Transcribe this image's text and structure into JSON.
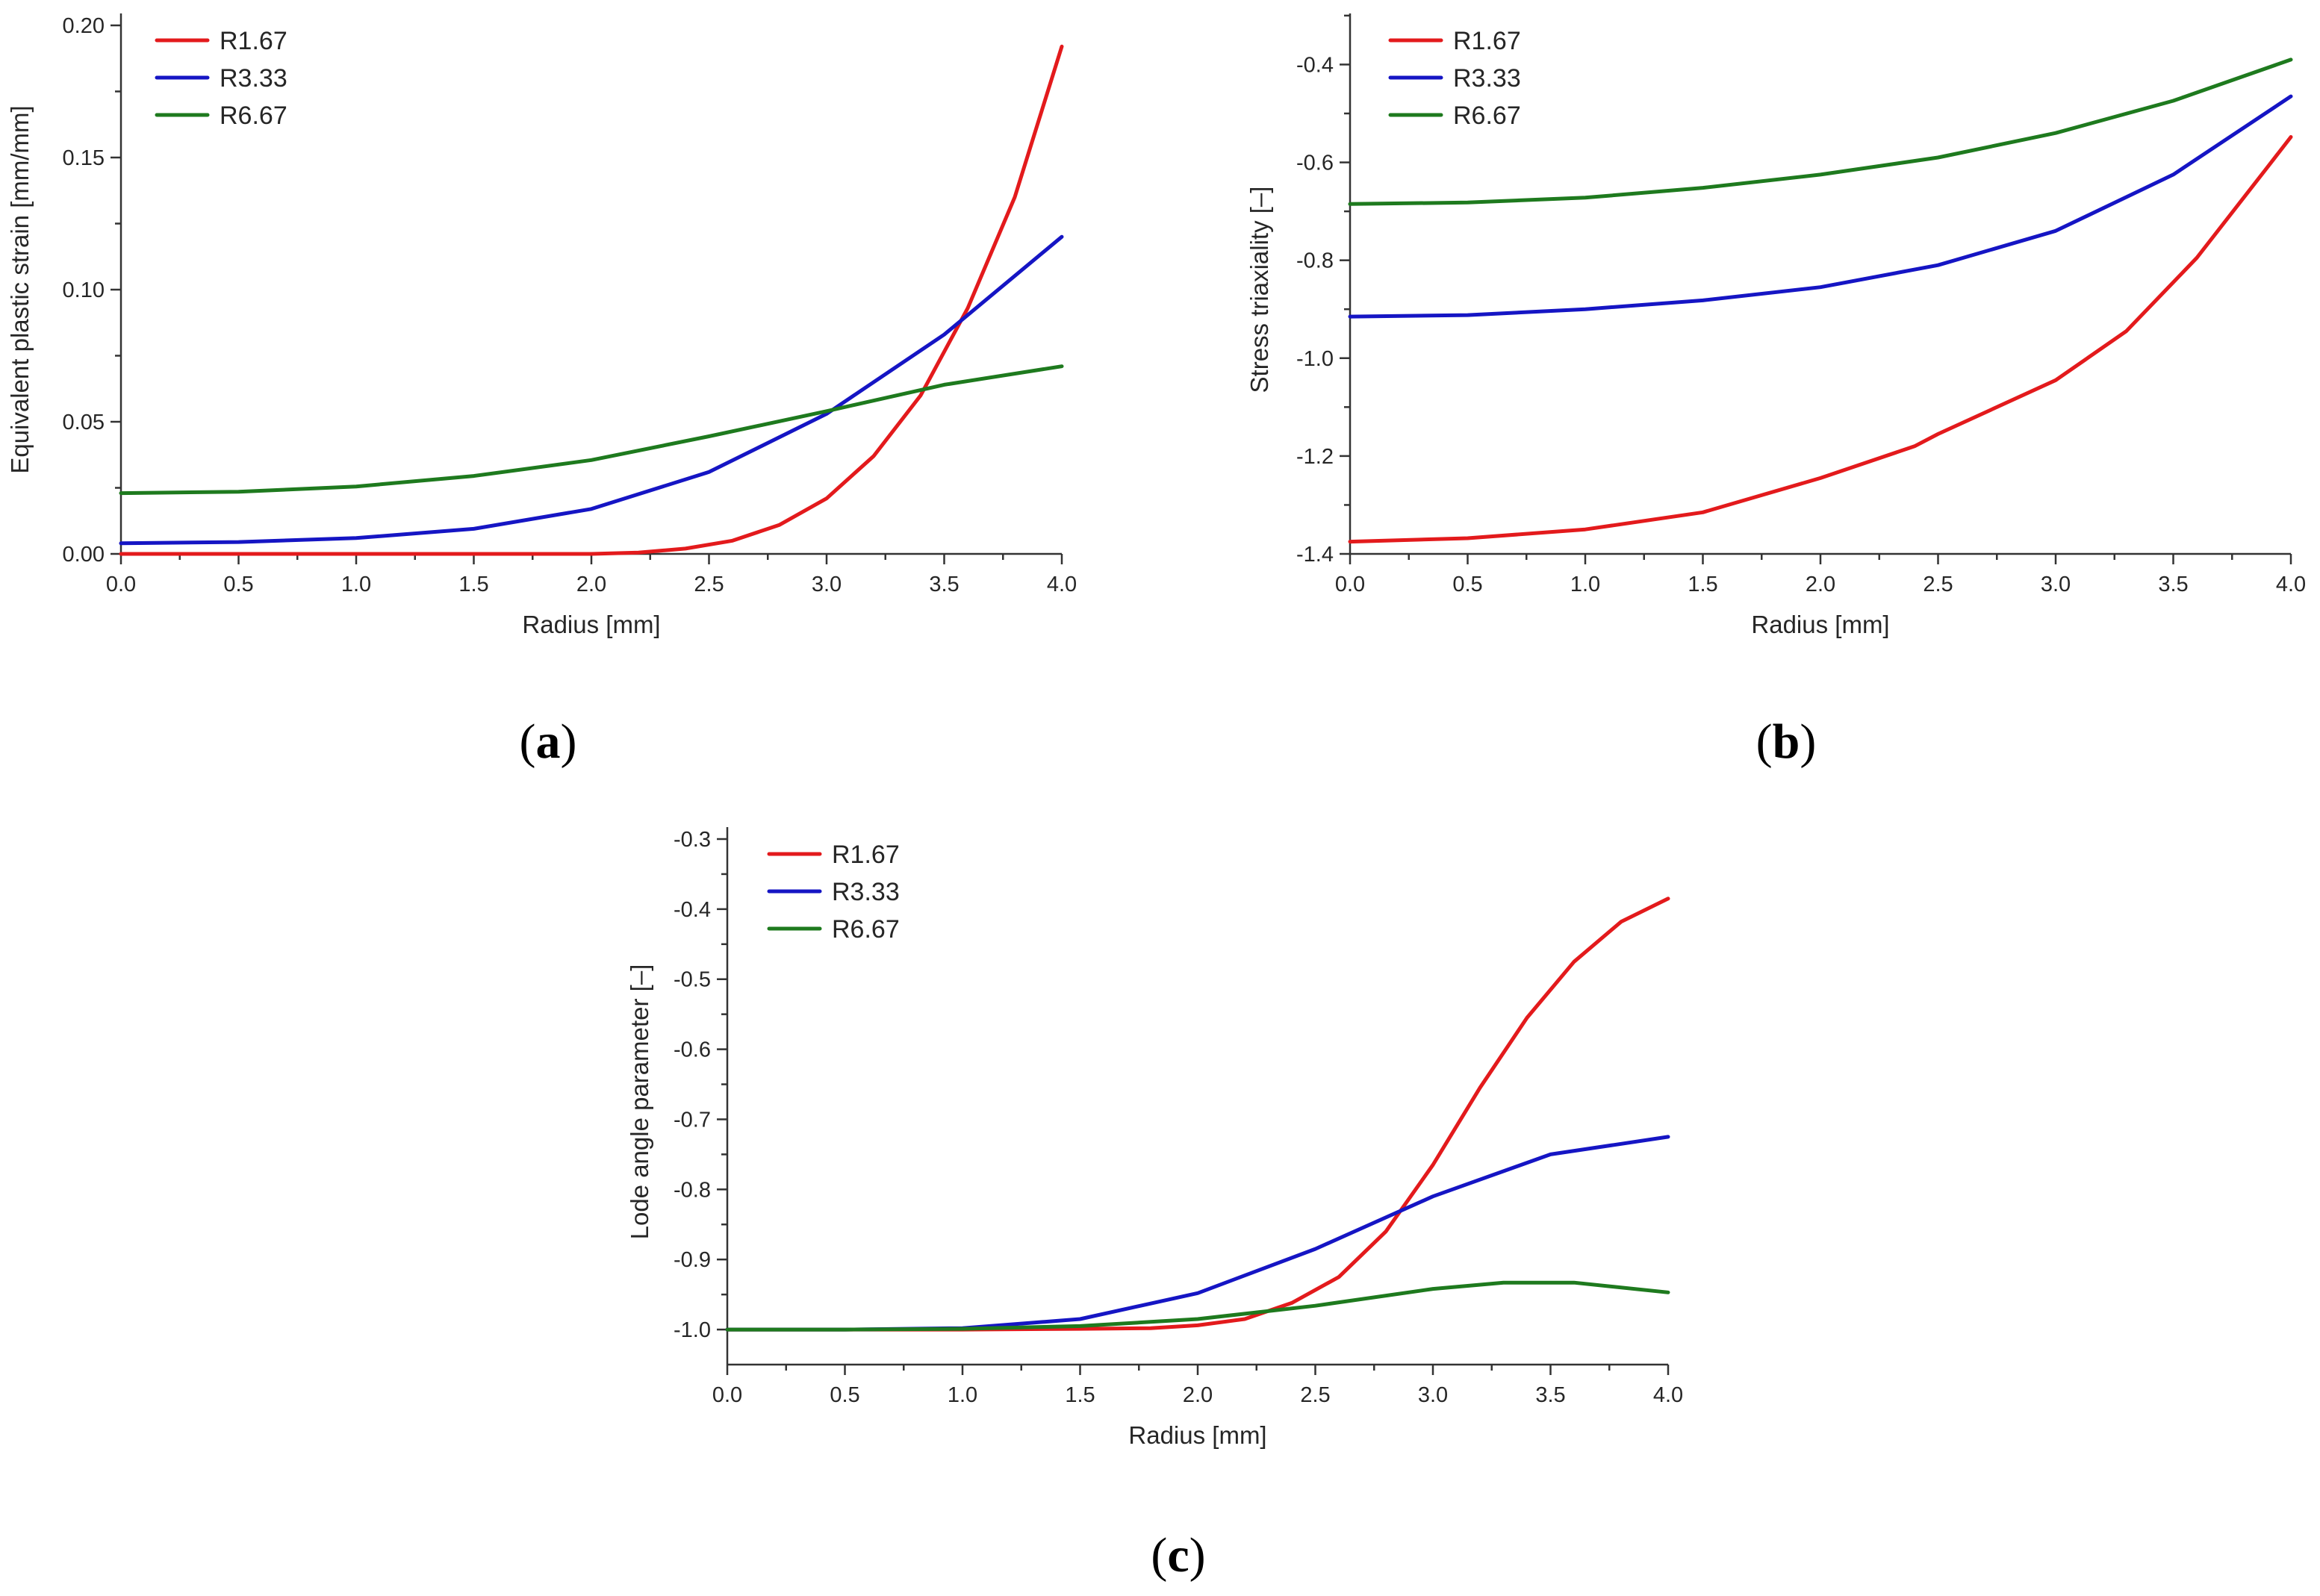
{
  "chart_data": [
    {
      "id": "a",
      "type": "line",
      "caption_letter": "a",
      "title": "",
      "xlabel": "Radius [mm]",
      "ylabel": "Equivalent plastic strain [mm/mm]",
      "xlim": [
        0.0,
        4.0
      ],
      "ylim": [
        0.0,
        0.2
      ],
      "xticks": [
        0.0,
        0.5,
        1.0,
        1.5,
        2.0,
        2.5,
        3.0,
        3.5,
        4.0
      ],
      "xtick_labels": [
        "0.0",
        "0.5",
        "1.0",
        "1.5",
        "2.0",
        "2.5",
        "3.0",
        "3.5",
        "4.0"
      ],
      "yticks": [
        0.0,
        0.05,
        0.1,
        0.15,
        0.2
      ],
      "ytick_labels": [
        "0.00",
        "0.05",
        "0.10",
        "0.15",
        "0.20"
      ],
      "grid": false,
      "legend_position": "top-left",
      "series": [
        {
          "name": "R1.67",
          "color": "#e31a1c",
          "x": [
            0.0,
            0.5,
            1.0,
            1.5,
            2.0,
            2.2,
            2.4,
            2.6,
            2.8,
            3.0,
            3.2,
            3.4,
            3.6,
            3.8,
            4.0
          ],
          "y": [
            0.0,
            0.0,
            0.0,
            0.0,
            0.0,
            0.0005,
            0.002,
            0.005,
            0.011,
            0.021,
            0.037,
            0.06,
            0.093,
            0.135,
            0.192
          ]
        },
        {
          "name": "R3.33",
          "color": "#1515c4",
          "x": [
            0.0,
            0.5,
            1.0,
            1.5,
            2.0,
            2.5,
            3.0,
            3.5,
            4.0
          ],
          "y": [
            0.004,
            0.0045,
            0.006,
            0.0095,
            0.017,
            0.031,
            0.053,
            0.083,
            0.12
          ]
        },
        {
          "name": "R6.67",
          "color": "#1e7a1e",
          "x": [
            0.0,
            0.5,
            1.0,
            1.5,
            2.0,
            2.5,
            3.0,
            3.5,
            4.0
          ],
          "y": [
            0.023,
            0.0235,
            0.0255,
            0.0295,
            0.0355,
            0.0445,
            0.054,
            0.064,
            0.071
          ]
        }
      ]
    },
    {
      "id": "b",
      "type": "line",
      "caption_letter": "b",
      "title": "",
      "xlabel": "Radius [mm]",
      "ylabel": "Stress triaxiality [–]",
      "xlim": [
        0.0,
        4.0
      ],
      "ylim": [
        -1.4,
        -0.32
      ],
      "xticks": [
        0.0,
        0.5,
        1.0,
        1.5,
        2.0,
        2.5,
        3.0,
        3.5,
        4.0
      ],
      "xtick_labels": [
        "0.0",
        "0.5",
        "1.0",
        "1.5",
        "2.0",
        "2.5",
        "3.0",
        "3.5",
        "4.0"
      ],
      "yticks": [
        -1.4,
        -1.2,
        -1.0,
        -0.8,
        -0.6,
        -0.4
      ],
      "ytick_labels": [
        "-1.4",
        "-1.2",
        "-1.0",
        "-0.8",
        "-0.6",
        "-0.4"
      ],
      "grid": false,
      "legend_position": "top-left",
      "series": [
        {
          "name": "R1.67",
          "color": "#e31a1c",
          "x": [
            0.0,
            0.5,
            1.0,
            1.5,
            2.0,
            2.4,
            2.5,
            3.0,
            3.3,
            3.6,
            3.9,
            4.0
          ],
          "y": [
            -1.375,
            -1.368,
            -1.35,
            -1.315,
            -1.245,
            -1.18,
            -1.155,
            -1.045,
            -0.945,
            -0.795,
            -0.61,
            -0.548
          ]
        },
        {
          "name": "R3.33",
          "color": "#1515c4",
          "x": [
            0.0,
            0.5,
            1.0,
            1.5,
            2.0,
            2.5,
            3.0,
            3.5,
            4.0
          ],
          "y": [
            -0.915,
            -0.912,
            -0.9,
            -0.882,
            -0.855,
            -0.81,
            -0.74,
            -0.625,
            -0.465
          ]
        },
        {
          "name": "R6.67",
          "color": "#1e7a1e",
          "x": [
            0.0,
            0.5,
            1.0,
            1.5,
            2.0,
            2.5,
            3.0,
            3.5,
            4.0
          ],
          "y": [
            -0.685,
            -0.682,
            -0.672,
            -0.652,
            -0.625,
            -0.59,
            -0.54,
            -0.474,
            -0.39
          ]
        }
      ]
    },
    {
      "id": "c",
      "type": "line",
      "caption_letter": "c",
      "title": "",
      "xlabel": "Radius [mm]",
      "ylabel": "Lode angle parameter [–]",
      "xlim": [
        0.0,
        4.0
      ],
      "ylim": [
        -1.05,
        -0.3
      ],
      "xticks": [
        0.0,
        0.5,
        1.0,
        1.5,
        2.0,
        2.5,
        3.0,
        3.5,
        4.0
      ],
      "xtick_labels": [
        "0.0",
        "0.5",
        "1.0",
        "1.5",
        "2.0",
        "2.5",
        "3.0",
        "3.5",
        "4.0"
      ],
      "yticks": [
        -1.0,
        -0.9,
        -0.8,
        -0.7,
        -0.6,
        -0.5,
        -0.4,
        -0.3
      ],
      "ytick_labels": [
        "-1.0",
        "-0.9",
        "-0.8",
        "-0.7",
        "-0.6",
        "-0.5",
        "-0.4",
        "-0.3"
      ],
      "grid": false,
      "legend_position": "top-left",
      "series": [
        {
          "name": "R1.67",
          "color": "#e31a1c",
          "x": [
            0.0,
            1.0,
            1.5,
            1.8,
            2.0,
            2.2,
            2.4,
            2.6,
            2.8,
            3.0,
            3.2,
            3.4,
            3.6,
            3.8,
            4.0
          ],
          "y": [
            -1.0,
            -1.0,
            -0.999,
            -0.998,
            -0.994,
            -0.985,
            -0.962,
            -0.925,
            -0.86,
            -0.765,
            -0.655,
            -0.555,
            -0.475,
            -0.418,
            -0.385
          ]
        },
        {
          "name": "R3.33",
          "color": "#1515c4",
          "x": [
            0.0,
            0.5,
            1.0,
            1.5,
            2.0,
            2.5,
            3.0,
            3.5,
            4.0
          ],
          "y": [
            -1.0,
            -1.0,
            -0.998,
            -0.985,
            -0.948,
            -0.885,
            -0.81,
            -0.75,
            -0.725
          ]
        },
        {
          "name": "R6.67",
          "color": "#1e7a1e",
          "x": [
            0.0,
            0.5,
            1.0,
            1.5,
            2.0,
            2.5,
            3.0,
            3.3,
            3.6,
            4.0
          ],
          "y": [
            -1.0,
            -1.0,
            -0.999,
            -0.995,
            -0.985,
            -0.966,
            -0.942,
            -0.933,
            -0.933,
            -0.947
          ]
        }
      ]
    }
  ]
}
